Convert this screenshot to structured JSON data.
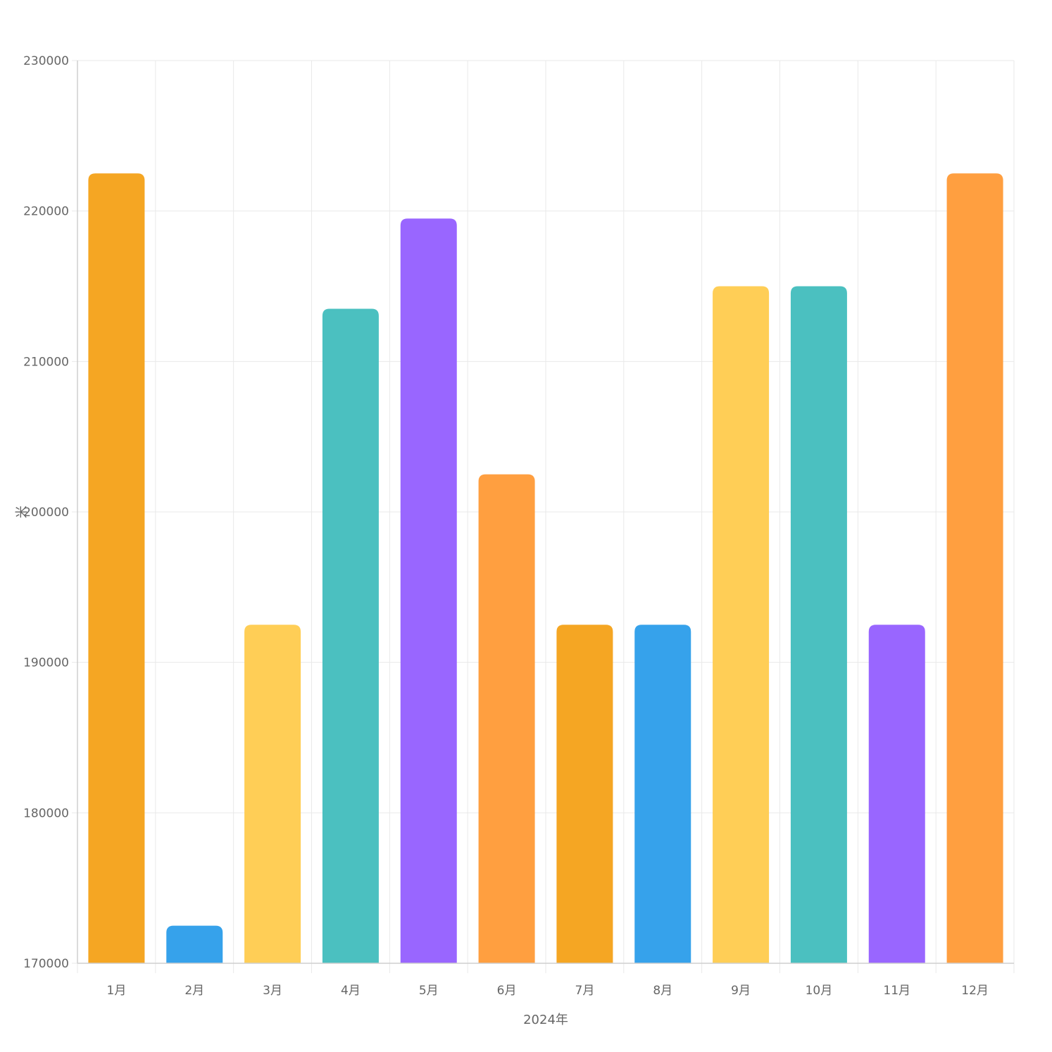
{
  "chart_data": {
    "type": "bar",
    "categories": [
      "1月",
      "2月",
      "3月",
      "4月",
      "5月",
      "6月",
      "7月",
      "8月",
      "9月",
      "10月",
      "11月",
      "12月"
    ],
    "values": [
      222500,
      172500,
      192500,
      213500,
      219500,
      202500,
      192500,
      192500,
      215000,
      215000,
      192500,
      222500
    ],
    "colors": [
      "#F5A623",
      "#36A2EB",
      "#FFCE56",
      "#4BC0C0",
      "#9966FF",
      "#FF9F40",
      "#F5A623",
      "#36A2EB",
      "#FFCE56",
      "#4BC0C0",
      "#9966FF",
      "#FF9F40"
    ],
    "title": "",
    "xlabel": "2024年",
    "ylabel": "米",
    "ylim": [
      170000,
      230000
    ],
    "yticks": [
      170000,
      180000,
      190000,
      200000,
      210000,
      220000,
      230000
    ],
    "grid": true,
    "legend": "none"
  }
}
